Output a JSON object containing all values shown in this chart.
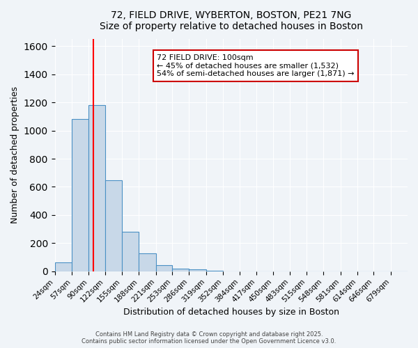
{
  "title": "72, FIELD DRIVE, WYBERTON, BOSTON, PE21 7NG",
  "subtitle": "Size of property relative to detached houses in Boston",
  "xlabel": "Distribution of detached houses by size in Boston",
  "ylabel": "Number of detached properties",
  "bar_values": [
    65,
    1080,
    1180,
    645,
    280,
    130,
    45,
    20,
    15,
    5,
    0,
    0,
    0,
    0,
    0,
    0,
    0,
    0,
    0,
    0,
    0
  ],
  "bin_labels": [
    "24sqm",
    "57sqm",
    "90sqm",
    "122sqm",
    "155sqm",
    "188sqm",
    "221sqm",
    "253sqm",
    "286sqm",
    "319sqm",
    "352sqm",
    "384sqm",
    "417sqm",
    "450sqm",
    "483sqm",
    "515sqm",
    "548sqm",
    "581sqm",
    "614sqm",
    "646sqm",
    "679sqm"
  ],
  "bar_color": "#c8d8e8",
  "bar_edge_color": "#4a90c4",
  "background_color": "#f0f4f8",
  "red_line_x": 100,
  "bin_edges": [
    24,
    57,
    90,
    122,
    155,
    188,
    221,
    253,
    286,
    319,
    352,
    384,
    417,
    450,
    483,
    515,
    548,
    581,
    614,
    646,
    679,
    712
  ],
  "annotation_title": "72 FIELD DRIVE: 100sqm",
  "annotation_line1": "← 45% of detached houses are smaller (1,532)",
  "annotation_line2": "54% of semi-detached houses are larger (1,871) →",
  "ylim": [
    0,
    1650
  ],
  "yticks": [
    0,
    200,
    400,
    600,
    800,
    1000,
    1200,
    1400,
    1600
  ],
  "footer1": "Contains HM Land Registry data © Crown copyright and database right 2025.",
  "footer2": "Contains public sector information licensed under the Open Government Licence v3.0."
}
